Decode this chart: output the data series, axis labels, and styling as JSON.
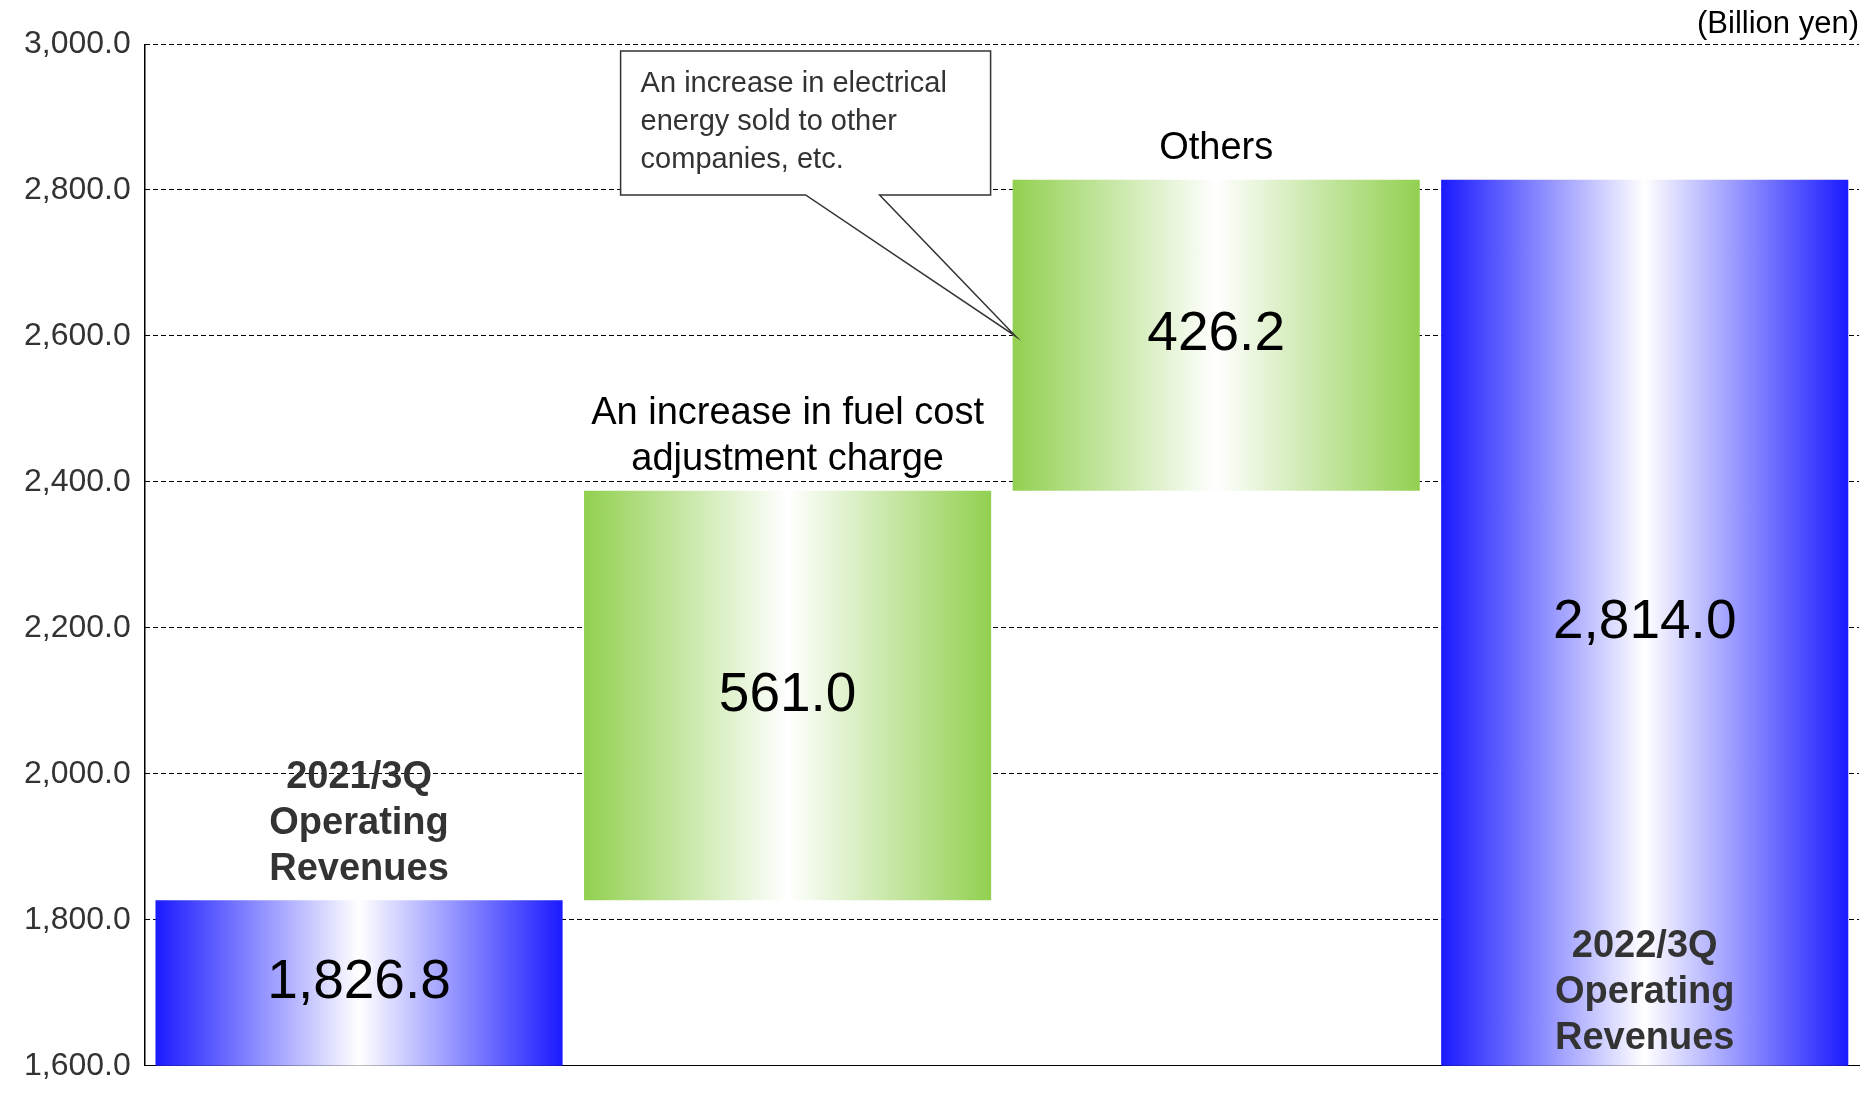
{
  "chart_data": {
    "type": "bar",
    "ylabel": "(Billion yen)",
    "categories": [
      "2021/3Q Operating Revenues",
      "An increase in fuel cost adjustment charge",
      "Others",
      "2022/3Q Operating Revenues"
    ],
    "values": [
      1826.8,
      561.0,
      426.2,
      2814.0
    ],
    "base": [
      0,
      1826.8,
      2387.8,
      0
    ],
    "colors": [
      "#1a1aff",
      "#92d050",
      "#92d050",
      "#1a1aff"
    ],
    "value_labels": [
      "1,826.8",
      "561.0",
      "426.2",
      "2,814.0"
    ],
    "ylim": [
      1600,
      3000
    ],
    "yticks": [
      {
        "value": 1600,
        "label": "1,600.0"
      },
      {
        "value": 1800,
        "label": "1,800.0"
      },
      {
        "value": 2000,
        "label": "2,000.0"
      },
      {
        "value": 2200,
        "label": "2,200.0"
      },
      {
        "value": 2400,
        "label": "2,400.0"
      },
      {
        "value": 2600,
        "label": "2,600.0"
      },
      {
        "value": 2800,
        "label": "2,800.0"
      },
      {
        "value": 3000,
        "label": "3,000.0"
      }
    ],
    "grid": "y",
    "legend": false,
    "tick_labels": "y",
    "annotations": [
      "An increase in electrical energy sold to other companies, etc."
    ]
  }
}
